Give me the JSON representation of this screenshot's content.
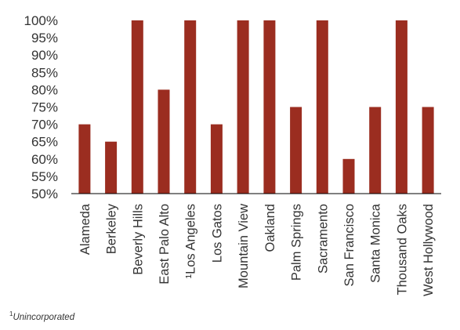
{
  "chart_data": {
    "type": "bar",
    "categories": [
      "Alameda",
      "Berkeley",
      "Beverly Hills",
      "East Palo Alto",
      "¹Los Angeles",
      "Los Gatos",
      "Mountain View",
      "Oakland",
      "Palm Springs",
      "Sacramento",
      "San Francisco",
      "Santa Monica",
      "Thousand Oaks",
      "West Hollywood"
    ],
    "values": [
      70,
      65,
      100,
      80,
      100,
      70,
      100,
      100,
      75,
      100,
      60,
      75,
      100,
      75
    ],
    "y_tick_labels": [
      "50%",
      "55%",
      "60%",
      "65%",
      "70%",
      "75%",
      "80%",
      "85%",
      "90%",
      "95%",
      "100%"
    ],
    "ylim": [
      50,
      100
    ],
    "grid": false,
    "legend": false,
    "bar_color": "#9b2d20",
    "title": "",
    "xlabel": "",
    "ylabel": ""
  },
  "footnote": {
    "marker": "1",
    "text": "Unincorporated"
  }
}
